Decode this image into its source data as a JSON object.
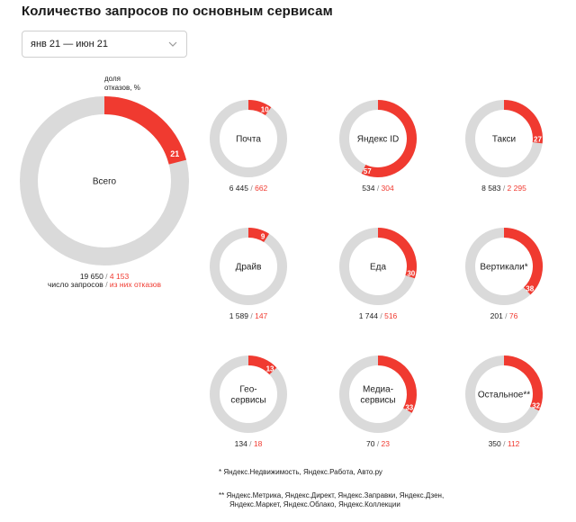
{
  "page": {
    "title": "Количество запросов по основным сервисам",
    "period_selector": {
      "selected": "янв 21 — июн 21"
    }
  },
  "colors": {
    "refusals": "#f03a30",
    "track": "#dadada",
    "text": "#222222"
  },
  "chart_data": {
    "type": "donut-grid",
    "title": "Количество запросов по основным сервисам",
    "main_annotation": "доля отказов, %",
    "total_legend": {
      "requests": "число запросов",
      "refusals": "из них отказов"
    },
    "total": {
      "name": "Всего",
      "percent": 21,
      "requests": "19 650",
      "refusals": "4 153"
    },
    "services": [
      {
        "name": "Почта",
        "percent": 10,
        "requests": "6 445",
        "refusals": "662"
      },
      {
        "name": "Яндекс ID",
        "percent": 57,
        "requests": "534",
        "refusals": "304"
      },
      {
        "name": "Такси",
        "percent": 27,
        "requests": "8 583",
        "refusals": "2 295"
      },
      {
        "name": "Драйв",
        "percent": 9,
        "requests": "1 589",
        "refusals": "147"
      },
      {
        "name": "Еда",
        "percent": 30,
        "requests": "1 744",
        "refusals": "516"
      },
      {
        "name": "Вертикали*",
        "percent": 38,
        "requests": "201",
        "refusals": "76"
      },
      {
        "name": "Гео-\nсервисы",
        "percent": 13,
        "requests": "134",
        "refusals": "18"
      },
      {
        "name": "Медиа-\nсервисы",
        "percent": 33,
        "requests": "70",
        "refusals": "23"
      },
      {
        "name": "Остальное**",
        "percent": 32,
        "requests": "350",
        "refusals": "112"
      }
    ]
  },
  "footnotes": {
    "note1": "*  Яндекс.Недвижимость, Яндекс.Работа, Авто.ру",
    "note2_line1": "**  Яндекс.Метрика, Яндекс.Директ, Яндекс.Заправки, Яндекс.Дзен,",
    "note2_line2": "Яндекс.Маркет, Яндекс.Облако, Яндекс.Коллекции"
  }
}
